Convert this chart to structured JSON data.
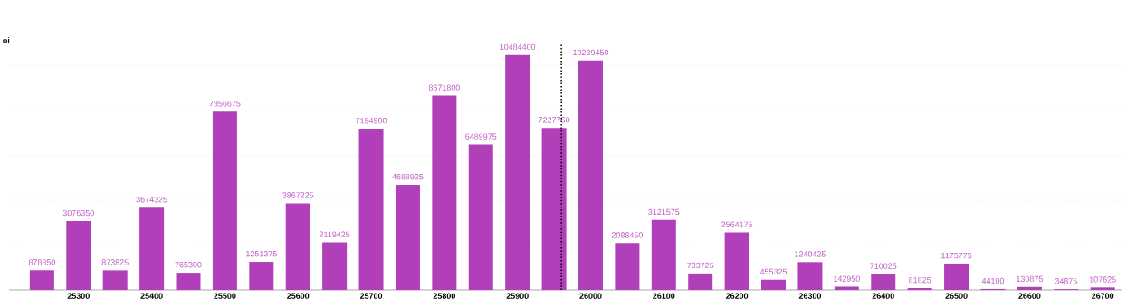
{
  "chart_data": {
    "type": "bar",
    "ylabel": "oi",
    "x": [
      25250,
      25300,
      25350,
      25400,
      25450,
      25500,
      25550,
      25600,
      25650,
      25700,
      25750,
      25800,
      25850,
      25900,
      25950,
      26000,
      26050,
      26100,
      26150,
      26200,
      26250,
      26300,
      26350,
      26400,
      26450,
      26500,
      26550,
      26600,
      26650,
      26700
    ],
    "values": [
      878850,
      3076350,
      873825,
      3674325,
      765300,
      7956675,
      1251375,
      3867225,
      2119425,
      7194900,
      4688925,
      8671800,
      6489975,
      10484400,
      7227750,
      10239450,
      2088450,
      3121575,
      733725,
      2564175,
      455325,
      1240425,
      142950,
      710025,
      81825,
      1175775,
      44100,
      130875,
      34875,
      107625
    ],
    "color": "#b13fb9",
    "xlim": [
      25205,
      26727
    ],
    "xticks": [
      25300,
      25400,
      25500,
      25600,
      25700,
      25800,
      25900,
      26000,
      26100,
      26200,
      26300,
      26400,
      26500,
      26600,
      26700
    ],
    "ylim": [
      0,
      11000000
    ],
    "tick_labels": "x",
    "grid": "y",
    "data_labels": true,
    "ref_lines": [
      {
        "axis": "x",
        "value": 25960,
        "color": "#000000",
        "line_style": "dotted"
      }
    ]
  }
}
